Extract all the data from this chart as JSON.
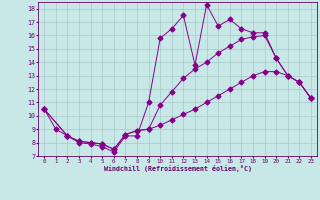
{
  "xlabel": "Windchill (Refroidissement éolien,°C)",
  "bg_color": "#c8e8e8",
  "grid_color": "#a8c8c8",
  "line_color": "#880088",
  "x_ticks": [
    0,
    1,
    2,
    3,
    4,
    5,
    6,
    7,
    8,
    9,
    10,
    11,
    12,
    13,
    14,
    15,
    16,
    17,
    18,
    19,
    20,
    21,
    22,
    23
  ],
  "ylim": [
    7,
    18.5
  ],
  "xlim": [
    -0.5,
    23.5
  ],
  "line1_x": [
    0,
    1,
    2,
    3,
    4,
    5,
    6,
    7,
    8,
    9,
    10,
    11,
    12,
    13,
    14,
    15,
    16,
    17,
    18,
    19,
    20,
    21,
    22,
    23
  ],
  "line1_y": [
    10.5,
    9.0,
    8.5,
    8.0,
    7.9,
    7.7,
    7.3,
    8.5,
    8.5,
    11.0,
    15.8,
    16.5,
    17.5,
    13.8,
    18.3,
    16.7,
    17.2,
    16.5,
    16.2,
    16.2,
    14.3,
    13.0,
    12.5,
    11.3
  ],
  "line2_x": [
    0,
    2,
    3,
    4,
    5,
    6,
    7,
    8,
    9,
    10,
    11,
    12,
    13,
    14,
    15,
    16,
    17,
    18,
    19,
    20,
    21,
    22,
    23
  ],
  "line2_y": [
    10.5,
    8.5,
    8.1,
    8.0,
    7.9,
    7.5,
    8.6,
    8.9,
    9.0,
    10.8,
    11.8,
    12.8,
    13.5,
    14.0,
    14.7,
    15.2,
    15.7,
    15.9,
    16.0,
    14.3,
    13.0,
    12.5,
    11.3
  ],
  "line3_x": [
    0,
    2,
    3,
    4,
    5,
    6,
    7,
    8,
    9,
    10,
    11,
    12,
    13,
    14,
    15,
    16,
    17,
    18,
    19,
    20,
    21,
    22,
    23
  ],
  "line3_y": [
    10.5,
    8.5,
    8.1,
    8.0,
    7.9,
    7.5,
    8.6,
    8.9,
    9.0,
    9.3,
    9.7,
    10.1,
    10.5,
    11.0,
    11.5,
    12.0,
    12.5,
    13.0,
    13.3,
    13.3,
    13.0,
    12.5,
    11.3
  ]
}
